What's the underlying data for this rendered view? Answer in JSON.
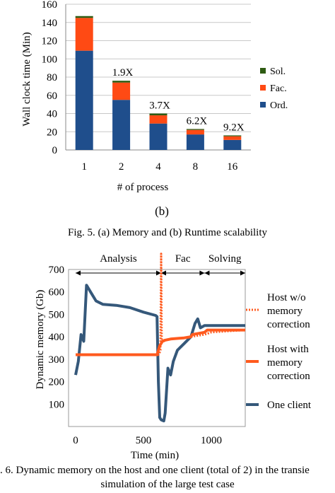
{
  "captions": {
    "panel_label": "(b)",
    "fig5": "Fig. 5. (a) Memory and (b) Runtime scalability",
    "fig6_line1": ". 6. Dynamic memory on the host and one client (total of 2) in the transie",
    "fig6_line2": "simulation of the large test case"
  },
  "chart_data": [
    {
      "type": "bar",
      "stacked": true,
      "xlabel": "# of process",
      "ylabel": "Wall clock time (Min)",
      "ylim": [
        0,
        160
      ],
      "yticks": [
        0,
        20,
        40,
        60,
        80,
        100,
        120,
        140,
        160
      ],
      "categories": [
        "1",
        "2",
        "4",
        "8",
        "16"
      ],
      "series": [
        {
          "name": "Ord.",
          "color": "#1f4e8c",
          "values": [
            109,
            55,
            29,
            17,
            11
          ]
        },
        {
          "name": "Fac.",
          "color": "#ff4a14",
          "values": [
            36,
            19,
            9,
            5,
            4
          ]
        },
        {
          "name": "Sol.",
          "color": "#2e5b12",
          "values": [
            2,
            2,
            2,
            1,
            1
          ]
        }
      ],
      "annotations": [
        "",
        "1.9X",
        "3.7X",
        "6.2X",
        "9.2X"
      ],
      "grid": true,
      "legend": "right"
    },
    {
      "type": "line",
      "xlabel": "Time (min)",
      "ylabel": "Dynamic memory (Gb)",
      "ylim": [
        0,
        700
      ],
      "yticks": [
        100,
        200,
        300,
        400,
        500,
        600,
        700
      ],
      "xlim": [
        0,
        1250
      ],
      "xticks": [
        0,
        500,
        1000
      ],
      "phases": [
        {
          "label": "Analysis",
          "start": 0,
          "end": 630
        },
        {
          "label": "Fac",
          "start": 630,
          "end": 950
        },
        {
          "label": "Solving",
          "start": 950,
          "end": 1250
        }
      ],
      "series": [
        {
          "name": "Host w/o memory correction",
          "color": "#ff5a1e",
          "style": "dotted",
          "x": [
            0,
            610,
            620,
            625,
            630,
            635,
            640,
            650,
            660,
            700,
            800,
            850,
            950,
            1000,
            1250
          ],
          "y": [
            320,
            320,
            330,
            340,
            770,
            380,
            375,
            380,
            385,
            390,
            395,
            400,
            410,
            420,
            430
          ]
        },
        {
          "name": "Host with memory correction",
          "color": "#ff5a1e",
          "style": "solid",
          "x": [
            0,
            600,
            610,
            620,
            640,
            660,
            700,
            800,
            850,
            860,
            950,
            970,
            1000,
            1250
          ],
          "y": [
            320,
            320,
            340,
            360,
            380,
            385,
            390,
            395,
            400,
            410,
            420,
            430,
            430,
            430
          ]
        },
        {
          "name": "One client",
          "color": "#35587a",
          "style": "solid",
          "x": [
            0,
            20,
            40,
            60,
            80,
            100,
            150,
            200,
            300,
            400,
            500,
            590,
            600,
            610,
            620,
            630,
            650,
            660,
            680,
            700,
            720,
            750,
            800,
            850,
            880,
            900,
            920,
            950,
            1000,
            1100,
            1250
          ],
          "y": [
            230,
            290,
            410,
            380,
            630,
            610,
            560,
            545,
            540,
            530,
            510,
            495,
            490,
            200,
            40,
            30,
            25,
            60,
            260,
            230,
            290,
            340,
            370,
            400,
            460,
            480,
            440,
            450,
            450,
            450,
            450
          ]
        }
      ],
      "legend": "right"
    }
  ]
}
